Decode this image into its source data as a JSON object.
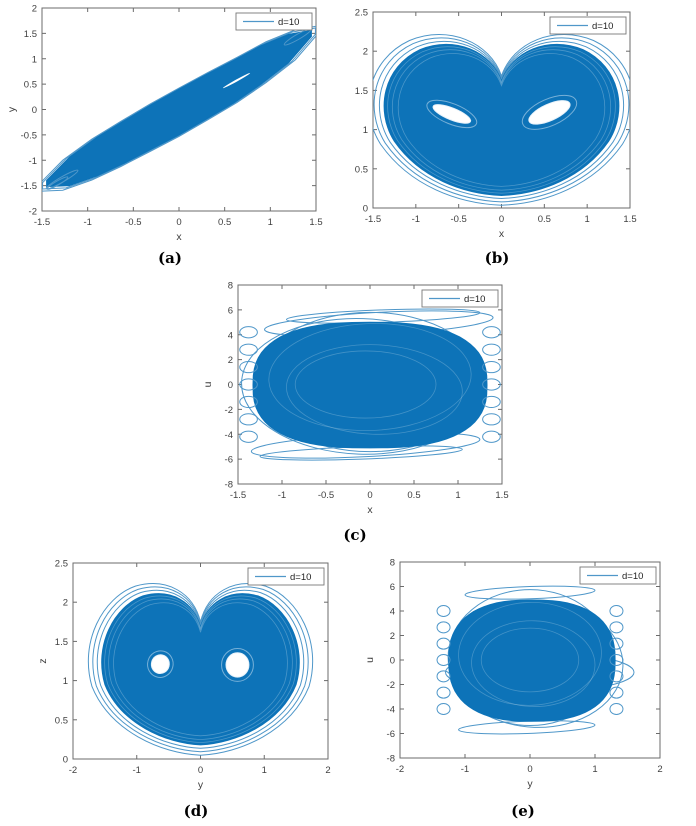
{
  "figure": {
    "background": "#ffffff",
    "trace_color": "#0d73b8",
    "outline_color": "#4f97c9",
    "texture_color": "#bcd9ec",
    "axis_color": "#6b6b6b",
    "tick_text_color": "#3f3f3f",
    "legend_border_color": "#777777",
    "legend_text_color": "#222222"
  },
  "chart_data": [
    {
      "id": "a",
      "type": "line",
      "caption": "(a)",
      "title": "",
      "xlabel": "x",
      "ylabel": "y",
      "xlim": [
        -1.5,
        1.5
      ],
      "ylim": [
        -2,
        2
      ],
      "xticks": [
        "-1.5",
        "-1",
        "-0.5",
        "0",
        "0.5",
        "1",
        "1.5"
      ],
      "yticks": [
        "-2",
        "-1.5",
        "-1",
        "-0.5",
        "0",
        "0.5",
        "1",
        "1.5",
        "2"
      ],
      "legend": {
        "label": "d=10",
        "position": "top-right"
      },
      "series": [
        {
          "name": "d=10"
        }
      ],
      "attractor": {
        "kind": "band",
        "fill_polygon": [
          [
            -1.45,
            -1.4
          ],
          [
            -1.2,
            -0.94
          ],
          [
            -0.9,
            -0.55
          ],
          [
            -0.6,
            -0.22
          ],
          [
            -0.3,
            0.1
          ],
          [
            0,
            0.4
          ],
          [
            0.3,
            0.69
          ],
          [
            0.6,
            0.97
          ],
          [
            0.9,
            1.26
          ],
          [
            1.2,
            1.48
          ],
          [
            1.45,
            1.56
          ],
          [
            1.45,
            1.44
          ],
          [
            1.2,
            0.92
          ],
          [
            0.9,
            0.5
          ],
          [
            0.6,
            0.13
          ],
          [
            0.3,
            -0.19
          ],
          [
            0,
            -0.5
          ],
          [
            -0.3,
            -0.78
          ],
          [
            -0.6,
            -1.06
          ],
          [
            -0.9,
            -1.31
          ],
          [
            -1.2,
            -1.5
          ],
          [
            -1.45,
            -1.52
          ]
        ],
        "outlines": [
          {
            "scale": 1.03,
            "center": [
              0,
              0
            ]
          },
          {
            "scale": 1.06,
            "center": [
              0,
              0
            ]
          }
        ],
        "tip_loops": [
          {
            "cx": -1.28,
            "cy": -1.38,
            "rx": 0.2,
            "ry": 0.05,
            "rot": -30
          },
          {
            "cx": -1.33,
            "cy": -1.45,
            "rx": 0.13,
            "ry": 0.04,
            "rot": -30
          },
          {
            "cx": 1.3,
            "cy": 1.43,
            "rx": 0.17,
            "ry": 0.05,
            "rot": -30
          }
        ],
        "white_slivers": [
          {
            "cx": 0.63,
            "cy": 0.57,
            "rx": 0.17,
            "ry": 0.02,
            "rot": -29
          }
        ]
      }
    },
    {
      "id": "b",
      "type": "line",
      "caption": "(b)",
      "title": "",
      "xlabel": "x",
      "ylabel": "z",
      "xlim": [
        -1.5,
        1.5
      ],
      "ylim": [
        0,
        2.5
      ],
      "xticks": [
        "-1.5",
        "-1",
        "-0.5",
        "0",
        "0.5",
        "1",
        "1.5"
      ],
      "yticks": [
        "0",
        "0.5",
        "1",
        "1.5",
        "2",
        "2.5"
      ],
      "legend": {
        "label": "d=10",
        "position": "top-right"
      },
      "series": [
        {
          "name": "d=10"
        }
      ],
      "attractor": {
        "kind": "heart",
        "fill_path": [
          [
            "M",
            0,
            0.16
          ],
          [
            "C",
            0.45,
            0.18,
            0.95,
            0.38,
            1.25,
            0.85
          ],
          [
            "C",
            1.48,
            1.25,
            1.38,
            1.8,
            0.95,
            2.02
          ],
          [
            "C",
            0.55,
            2.2,
            0.12,
            2.0,
            0,
            1.62
          ],
          [
            "C",
            -0.12,
            2.0,
            -0.55,
            2.2,
            -0.95,
            2.02
          ],
          [
            "C",
            -1.38,
            1.8,
            -1.48,
            1.25,
            -1.25,
            0.85
          ],
          [
            "C",
            -0.95,
            0.38,
            -0.45,
            0.18,
            0,
            0.16
          ],
          [
            "Z"
          ]
        ],
        "center": [
          0,
          1.12
        ],
        "outlines": [
          {
            "scale": 1.04
          },
          {
            "scale": 1.085
          },
          {
            "scale": 1.13
          }
        ],
        "inner_texture": [
          {
            "scale": 0.97
          },
          {
            "scale": 0.93
          },
          {
            "scale": 0.88
          }
        ],
        "holes": [
          {
            "cx": -0.58,
            "cy": 1.2,
            "rx": 0.235,
            "ry": 0.075,
            "rot": 22
          },
          {
            "cx": 0.56,
            "cy": 1.22,
            "rx": 0.26,
            "ry": 0.105,
            "rot": -24
          }
        ],
        "hole_rings": [
          {
            "cx": -0.58,
            "cy": 1.2,
            "rx": 0.31,
            "ry": 0.13,
            "rot": 22
          },
          {
            "cx": 0.56,
            "cy": 1.22,
            "rx": 0.34,
            "ry": 0.17,
            "rot": -24
          }
        ]
      }
    },
    {
      "id": "c",
      "type": "line",
      "caption": "(c)",
      "title": "",
      "xlabel": "x",
      "ylabel": "u",
      "xlim": [
        -1.5,
        1.5
      ],
      "ylim": [
        -8,
        8
      ],
      "xticks": [
        "-1.5",
        "-1",
        "-0.5",
        "0",
        "0.5",
        "1",
        "1.5"
      ],
      "yticks": [
        "-8",
        "-6",
        "-4",
        "-2",
        "0",
        "2",
        "4",
        "6",
        "8"
      ],
      "legend": {
        "label": "d=10",
        "position": "top-right"
      },
      "series": [
        {
          "name": "d=10"
        }
      ],
      "attractor": {
        "kind": "blob",
        "superellipse": {
          "cx": 0,
          "cy": -0.05,
          "rx": 1.33,
          "ry": 5.05,
          "n": 2.6
        },
        "outlines": [
          {
            "cx": 0,
            "cy": 0.2,
            "rx": 1.3,
            "ry": 5.6,
            "rot": 0
          },
          {
            "cx": -0.1,
            "cy": -0.15,
            "rx": 1.36,
            "ry": 5.45,
            "rot": 2
          },
          {
            "cx": 0.15,
            "cy": 5.5,
            "rx": 1.1,
            "ry": 0.5,
            "rot": -2
          },
          {
            "cx": -0.1,
            "cy": -5.5,
            "rx": 1.15,
            "ry": 0.5,
            "rot": -2
          },
          {
            "cx": 0.1,
            "cy": 4.9,
            "rx": 1.3,
            "ry": 0.9,
            "rot": -3
          },
          {
            "cx": -0.05,
            "cy": -4.9,
            "rx": 1.3,
            "ry": 0.9,
            "rot": -3
          }
        ],
        "inner_texture": [
          {
            "cx": 0,
            "cy": 0.6,
            "rx": 1.15,
            "ry": 4.3,
            "rot": -2
          },
          {
            "cx": 0.05,
            "cy": -0.4,
            "rx": 1.0,
            "ry": 3.6,
            "rot": 2
          },
          {
            "cx": -0.05,
            "cy": 0,
            "rx": 0.8,
            "ry": 2.7,
            "rot": 0
          }
        ],
        "scallops": {
          "xs": [
            -1.38,
            1.38
          ],
          "u_from": -4.2,
          "u_to": 4.2,
          "count": 7,
          "rx": 0.1,
          "ry": 0.45
        }
      }
    },
    {
      "id": "d",
      "type": "line",
      "caption": "(d)",
      "title": "",
      "xlabel": "y",
      "ylabel": "z",
      "xlim": [
        -2,
        2
      ],
      "ylim": [
        0,
        2.5
      ],
      "xticks": [
        "-2",
        "-1",
        "0",
        "1",
        "2"
      ],
      "yticks": [
        "0",
        "0.5",
        "1",
        "1.5",
        "2",
        "2.5"
      ],
      "legend": {
        "label": "d=10",
        "position": "top-right"
      },
      "series": [
        {
          "name": "d=10"
        }
      ],
      "attractor": {
        "kind": "heart",
        "fill_path": [
          [
            "M",
            0,
            0.18
          ],
          [
            "C",
            0.55,
            0.2,
            1.25,
            0.45,
            1.5,
            0.95
          ],
          [
            "C",
            1.68,
            1.45,
            1.35,
            1.95,
            0.9,
            2.08
          ],
          [
            "C",
            0.45,
            2.18,
            0.1,
            2.0,
            0,
            1.68
          ],
          [
            "C",
            -0.1,
            2.0,
            -0.45,
            2.18,
            -0.9,
            2.08
          ],
          [
            "C",
            -1.35,
            1.95,
            -1.68,
            1.45,
            -1.5,
            0.95
          ],
          [
            "C",
            -1.25,
            0.45,
            -0.55,
            0.2,
            0,
            0.18
          ],
          [
            "Z"
          ]
        ],
        "center": [
          0,
          1.15
        ],
        "outlines": [
          {
            "scale": 1.045
          },
          {
            "scale": 1.09
          },
          {
            "scale": 1.135
          }
        ],
        "inner_texture": [
          {
            "scale": 0.97
          },
          {
            "scale": 0.93
          },
          {
            "scale": 0.88
          }
        ],
        "holes": [
          {
            "cx": -0.63,
            "cy": 1.21,
            "rx": 0.14,
            "ry": 0.12,
            "rot": 15
          },
          {
            "cx": 0.58,
            "cy": 1.2,
            "rx": 0.18,
            "ry": 0.155,
            "rot": 0
          }
        ],
        "hole_rings": [
          {
            "cx": -0.63,
            "cy": 1.21,
            "rx": 0.2,
            "ry": 0.17,
            "rot": 15
          },
          {
            "cx": 0.58,
            "cy": 1.2,
            "rx": 0.25,
            "ry": 0.21,
            "rot": 0
          }
        ]
      }
    },
    {
      "id": "e",
      "type": "line",
      "caption": "(e)",
      "title": "",
      "xlabel": "y",
      "ylabel": "u",
      "xlim": [
        -2,
        2
      ],
      "ylim": [
        -8,
        8
      ],
      "xticks": [
        "-2",
        "-1",
        "0",
        "1",
        "2"
      ],
      "yticks": [
        "-8",
        "-6",
        "-4",
        "-2",
        "0",
        "2",
        "4",
        "6",
        "8"
      ],
      "legend": {
        "label": "d=10",
        "position": "top-right"
      },
      "series": [
        {
          "name": "d=10"
        }
      ],
      "attractor": {
        "kind": "blob",
        "superellipse": {
          "cx": 0.03,
          "cy": -0.05,
          "rx": 1.28,
          "ry": 4.95,
          "n": 2.5
        },
        "outlines": [
          {
            "cx": 0,
            "cy": 0.2,
            "rx": 1.26,
            "ry": 5.55,
            "rot": 0
          },
          {
            "cx": 0.1,
            "cy": -0.3,
            "rx": 1.33,
            "ry": 5.2,
            "rot": 2
          },
          {
            "cx": 0,
            "cy": 5.5,
            "rx": 1.0,
            "ry": 0.5,
            "rot": -2
          },
          {
            "cx": -0.05,
            "cy": -5.5,
            "rx": 1.05,
            "ry": 0.5,
            "rot": -2
          },
          {
            "cx": 0.15,
            "cy": -1.0,
            "rx": 1.45,
            "ry": 1.6,
            "rot": 0
          }
        ],
        "inner_texture": [
          {
            "cx": 0,
            "cy": 0.5,
            "rx": 1.1,
            "ry": 4.2,
            "rot": -2
          },
          {
            "cx": 0.05,
            "cy": -0.3,
            "rx": 0.95,
            "ry": 3.5,
            "rot": 2
          },
          {
            "cx": 0,
            "cy": 0,
            "rx": 0.75,
            "ry": 2.6,
            "rot": 0
          }
        ],
        "scallops": {
          "xs": [
            -1.33,
            1.33
          ],
          "u_from": -4.0,
          "u_to": 4.0,
          "count": 7,
          "rx": 0.1,
          "ry": 0.45
        }
      }
    }
  ]
}
